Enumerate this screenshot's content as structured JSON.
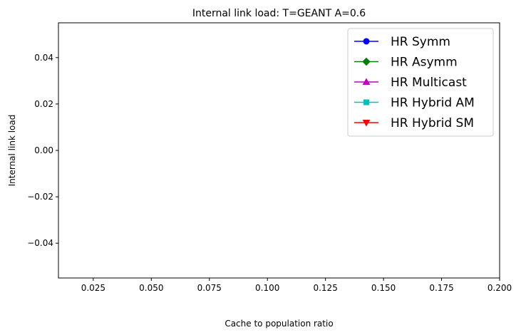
{
  "chart_data": {
    "type": "line",
    "title": "Internal link load: T=GEANT A=0.6",
    "xlabel": "Cache to population ratio",
    "ylabel": "Internal link load",
    "xlim": [
      0.01,
      0.2
    ],
    "ylim": [
      -0.055,
      0.055
    ],
    "xticks": [
      "0.025",
      "0.050",
      "0.075",
      "0.100",
      "0.125",
      "0.150",
      "0.175",
      "0.200"
    ],
    "xtick_values": [
      0.025,
      0.05,
      0.075,
      0.1,
      0.125,
      0.15,
      0.175,
      0.2
    ],
    "yticks": [
      "0.04",
      "0.02",
      "0.00",
      "−0.02",
      "−0.04"
    ],
    "ytick_values": [
      0.04,
      0.02,
      0.0,
      -0.02,
      -0.04
    ],
    "grid": false,
    "legend_position": "top-right",
    "series": [
      {
        "name": "HR Symm",
        "color": "#0000ff",
        "marker": "circle",
        "x": [],
        "y": []
      },
      {
        "name": "HR Asymm",
        "color": "#008000",
        "marker": "diamond",
        "x": [],
        "y": []
      },
      {
        "name": "HR Multicast",
        "color": "#bf00bf",
        "marker": "triangle-up",
        "x": [],
        "y": []
      },
      {
        "name": "HR Hybrid AM",
        "color": "#00bfbf",
        "marker": "square",
        "x": [],
        "y": []
      },
      {
        "name": "HR Hybrid SM",
        "color": "#ff0000",
        "marker": "triangle-down",
        "x": [],
        "y": []
      }
    ]
  }
}
